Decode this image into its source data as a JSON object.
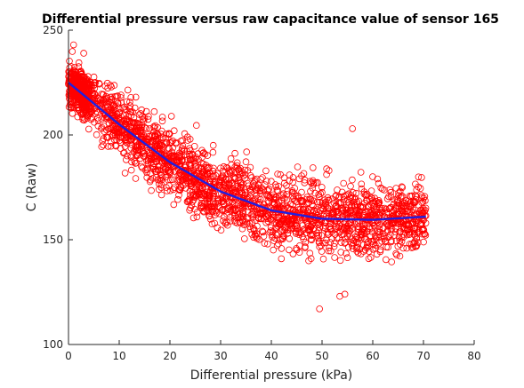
{
  "chart_data": {
    "type": "scatter",
    "title": "Differential pressure versus raw capacitance value of sensor 165",
    "xlabel": "Differential pressure (kPa)",
    "ylabel": "C (Raw)",
    "xlim": [
      0,
      80
    ],
    "ylim": [
      100,
      250
    ],
    "xticks": [
      "0",
      "10",
      "20",
      "30",
      "40",
      "50",
      "60",
      "70",
      "80"
    ],
    "yticks": [
      "100",
      "150",
      "200",
      "250"
    ],
    "grid": false,
    "legend": "none",
    "colors": {
      "scatter": "#ff0000",
      "fit": "#2020e0",
      "axis": "#262626"
    },
    "scatter": {
      "marker": "open-circle",
      "x_range": [
        0,
        70.5
      ],
      "approx_points": 5000,
      "outliers": [
        {
          "x": 49.5,
          "y": 117
        },
        {
          "x": 53.5,
          "y": 123
        },
        {
          "x": 54.5,
          "y": 124
        },
        {
          "x": 56,
          "y": 203
        },
        {
          "x": 1,
          "y": 243
        },
        {
          "x": 3,
          "y": 239
        }
      ]
    },
    "fit_curve": {
      "type": "quadratic",
      "points": [
        {
          "x": 0,
          "y": 225
        },
        {
          "x": 10,
          "y": 205
        },
        {
          "x": 20,
          "y": 187
        },
        {
          "x": 30,
          "y": 173
        },
        {
          "x": 40,
          "y": 164
        },
        {
          "x": 50,
          "y": 160
        },
        {
          "x": 60,
          "y": 159.5
        },
        {
          "x": 70.5,
          "y": 161
        }
      ]
    }
  }
}
